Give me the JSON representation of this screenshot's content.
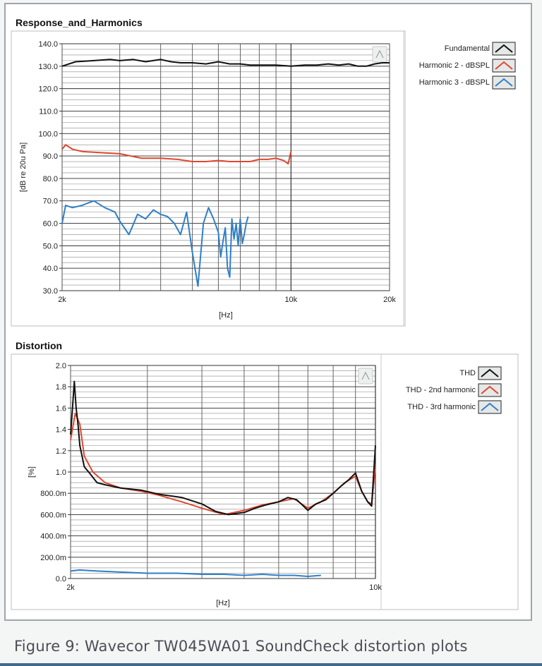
{
  "caption": "Figure 9: Wavecor TW045WA01 SoundCheck distortion plots",
  "colors": {
    "black_series": "#111111",
    "red_series": "#e0472f",
    "blue_series": "#2f7fc8",
    "grid": "#444444"
  },
  "chart_data": [
    {
      "type": "line",
      "title": "Response_and_Harmonics",
      "xlabel": "[Hz]",
      "ylabel": "[dB re 20u Pa]",
      "xscale": "log",
      "xlim": [
        2000,
        20000
      ],
      "ylim": [
        30,
        140
      ],
      "x_ticks": [
        {
          "v": 2000,
          "label": "2k"
        },
        {
          "v": 10000,
          "label": "10k"
        },
        {
          "v": 20000,
          "label": "20k"
        }
      ],
      "y_ticks": [
        {
          "v": 140,
          "label": "140.0"
        },
        {
          "v": 130,
          "label": "130.0"
        },
        {
          "v": 120,
          "label": "120.0"
        },
        {
          "v": 110,
          "label": "110.0"
        },
        {
          "v": 100,
          "label": "100.0"
        },
        {
          "v": 90,
          "label": "90.0"
        },
        {
          "v": 80,
          "label": "80.0"
        },
        {
          "v": 70,
          "label": "70.0"
        },
        {
          "v": 60,
          "label": "60.0"
        },
        {
          "v": 50,
          "label": "50.0"
        },
        {
          "v": 40,
          "label": "40.0"
        },
        {
          "v": 30,
          "label": "30.0"
        }
      ],
      "grid": true,
      "legend_position": "right",
      "series": [
        {
          "name": "Fundamental",
          "color": "#111111",
          "x": [
            2000,
            2200,
            2500,
            2800,
            3000,
            3300,
            3600,
            4000,
            4300,
            4600,
            5000,
            5500,
            6000,
            6500,
            7000,
            7500,
            8000,
            9000,
            10000,
            11000,
            12000,
            13000,
            14000,
            15000,
            16000,
            17000,
            18000,
            19000,
            20000
          ],
          "y": [
            130,
            132,
            132.5,
            133,
            132.5,
            133,
            132,
            133,
            132,
            131.5,
            131.5,
            131,
            132,
            131,
            131,
            130.5,
            130.5,
            130.5,
            130,
            130.5,
            130.5,
            131,
            130.5,
            131,
            130,
            130,
            131,
            131.5,
            131.5
          ]
        },
        {
          "name": "Harmonic 2 - dBSPL",
          "color": "#e0472f",
          "x": [
            2000,
            2050,
            2150,
            2300,
            2600,
            3000,
            3500,
            4000,
            4500,
            5000,
            5500,
            6000,
            6500,
            7000,
            7500,
            8000,
            8500,
            9000,
            9500,
            9800,
            10000
          ],
          "y": [
            93,
            95,
            93,
            92,
            91.5,
            91,
            89,
            89,
            88.5,
            87.5,
            87.5,
            88,
            87.5,
            87.5,
            87.5,
            88.5,
            88.5,
            89,
            88,
            86.5,
            92
          ]
        },
        {
          "name": "Harmonic 3 - dBSPL",
          "color": "#2f7fc8",
          "x": [
            2000,
            2050,
            2150,
            2300,
            2500,
            2700,
            2900,
            3000,
            3200,
            3400,
            3600,
            3800,
            4000,
            4200,
            4400,
            4600,
            4800,
            5000,
            5200,
            5400,
            5600,
            5800,
            6000,
            6100,
            6200,
            6300,
            6400,
            6500,
            6600,
            6700,
            6800,
            6900,
            7000,
            7100,
            7200,
            7300,
            7400
          ],
          "y": [
            60,
            68,
            67,
            68,
            70,
            67,
            65,
            61,
            55,
            64,
            62,
            66,
            64,
            63,
            60,
            55,
            65,
            47,
            32,
            60,
            67,
            62,
            56,
            45,
            52,
            58,
            40,
            36,
            62,
            53,
            60,
            50,
            62,
            51,
            55,
            60,
            63
          ]
        }
      ]
    },
    {
      "type": "line",
      "title": "Distortion",
      "xlabel": "[Hz]",
      "ylabel": "[%]",
      "xscale": "log",
      "xlim": [
        2000,
        10000
      ],
      "ylim": [
        0,
        2.0
      ],
      "x_ticks": [
        {
          "v": 2000,
          "label": "2k"
        },
        {
          "v": 10000,
          "label": "10k"
        }
      ],
      "y_ticks": [
        {
          "v": 2.0,
          "label": "2.0"
        },
        {
          "v": 1.8,
          "label": "1.8"
        },
        {
          "v": 1.6,
          "label": "1.6"
        },
        {
          "v": 1.4,
          "label": "1.4"
        },
        {
          "v": 1.2,
          "label": "1.2"
        },
        {
          "v": 1.0,
          "label": "1.0"
        },
        {
          "v": 0.8,
          "label": "800.0m"
        },
        {
          "v": 0.6,
          "label": "600.0m"
        },
        {
          "v": 0.4,
          "label": "400.0m"
        },
        {
          "v": 0.2,
          "label": "200.0m"
        },
        {
          "v": 0.0,
          "label": "0.0"
        }
      ],
      "grid": true,
      "legend_position": "right",
      "series": [
        {
          "name": "THD - 2nd harmonic",
          "color": "#e0472f",
          "x": [
            2000,
            2050,
            2100,
            2150,
            2250,
            2400,
            2600,
            2900,
            3200,
            3600,
            4000,
            4500,
            5000,
            5500,
            6000,
            6500,
            7000,
            7500,
            8000,
            8500,
            9000,
            9300,
            9600,
            9800,
            10000
          ],
          "y": [
            1.3,
            1.55,
            1.45,
            1.15,
            1.0,
            0.9,
            0.85,
            0.82,
            0.78,
            0.72,
            0.66,
            0.6,
            0.64,
            0.69,
            0.72,
            0.75,
            0.66,
            0.72,
            0.8,
            0.9,
            0.96,
            0.82,
            0.72,
            0.7,
            1.05
          ]
        },
        {
          "name": "THD",
          "color": "#111111",
          "x": [
            2000,
            2020,
            2040,
            2060,
            2080,
            2100,
            2150,
            2200,
            2300,
            2400,
            2600,
            2900,
            3200,
            3600,
            4000,
            4300,
            4600,
            5000,
            5300,
            5600,
            6000,
            6300,
            6600,
            7000,
            7300,
            7700,
            8000,
            8300,
            8700,
            9000,
            9300,
            9600,
            9800,
            10000
          ],
          "y": [
            1.35,
            1.6,
            1.85,
            1.6,
            1.45,
            1.25,
            1.05,
            1.0,
            0.9,
            0.88,
            0.85,
            0.83,
            0.79,
            0.76,
            0.7,
            0.63,
            0.6,
            0.62,
            0.66,
            0.69,
            0.72,
            0.76,
            0.74,
            0.64,
            0.7,
            0.74,
            0.8,
            0.86,
            0.93,
            0.99,
            0.82,
            0.72,
            0.68,
            1.25
          ]
        },
        {
          "name": "THD - 3rd harmonic",
          "color": "#2f7fc8",
          "x": [
            2000,
            2100,
            2300,
            2600,
            3000,
            3500,
            4000,
            4500,
            5000,
            5500,
            6000,
            6500,
            7000,
            7500
          ],
          "y": [
            0.07,
            0.08,
            0.07,
            0.06,
            0.05,
            0.05,
            0.04,
            0.04,
            0.03,
            0.04,
            0.03,
            0.03,
            0.02,
            0.03
          ]
        }
      ]
    }
  ]
}
